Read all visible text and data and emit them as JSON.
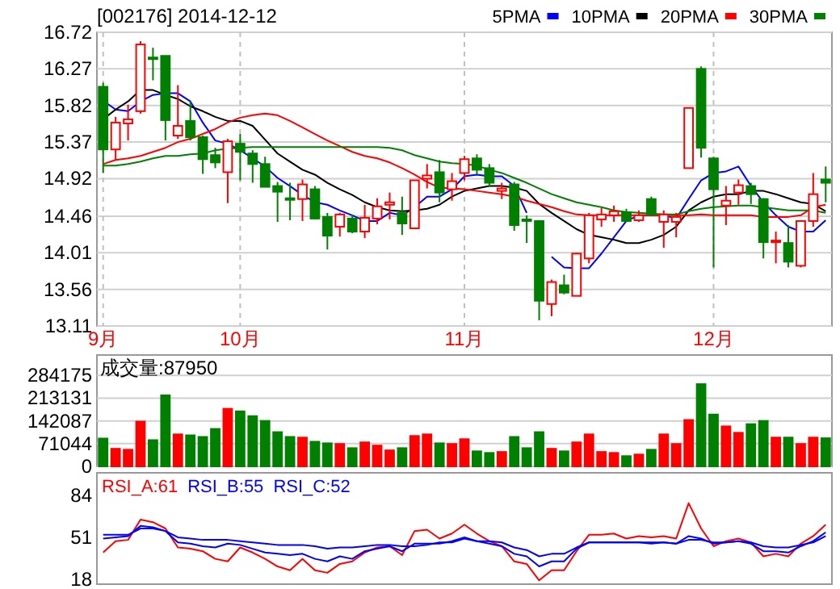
{
  "chart_data": [
    {
      "type": "candlestick",
      "title": "[002176] 2014-12-12",
      "categories": [
        "9月",
        null,
        null,
        null,
        null,
        null,
        null,
        null,
        null,
        null,
        null,
        "10月",
        null,
        null,
        null,
        null,
        null,
        null,
        null,
        null,
        null,
        null,
        null,
        null,
        null,
        null,
        null,
        null,
        null,
        "11月",
        null,
        null,
        null,
        null,
        null,
        null,
        null,
        null,
        null,
        null,
        null,
        null,
        null,
        null,
        null,
        null,
        null,
        null,
        null,
        "12月",
        null,
        null,
        null,
        null,
        null,
        null,
        null,
        null,
        null
      ],
      "ohlc": [
        [
          16.05,
          16.1,
          14.99,
          15.28
        ],
        [
          15.28,
          15.68,
          15.15,
          15.61
        ],
        [
          15.6,
          15.83,
          15.39,
          15.65
        ],
        [
          15.75,
          16.61,
          15.72,
          16.57
        ],
        [
          16.41,
          16.53,
          16.13,
          16.39
        ],
        [
          16.43,
          16.43,
          15.39,
          15.64
        ],
        [
          15.45,
          16.07,
          15.41,
          15.57
        ],
        [
          15.63,
          15.87,
          15.39,
          15.43
        ],
        [
          15.43,
          15.45,
          14.98,
          15.16
        ],
        [
          15.21,
          15.3,
          15.05,
          15.12
        ],
        [
          15.0,
          15.41,
          14.62,
          15.38
        ],
        [
          15.35,
          15.47,
          14.9,
          15.25
        ],
        [
          15.23,
          15.27,
          14.87,
          15.1
        ],
        [
          15.1,
          15.19,
          14.82,
          14.82
        ],
        [
          14.83,
          14.88,
          14.39,
          14.76
        ],
        [
          14.68,
          14.87,
          14.41,
          14.67
        ],
        [
          14.67,
          14.91,
          14.4,
          14.85
        ],
        [
          14.79,
          14.83,
          14.42,
          14.43
        ],
        [
          14.45,
          14.5,
          14.05,
          14.22
        ],
        [
          14.33,
          14.5,
          14.21,
          14.48
        ],
        [
          14.43,
          14.48,
          14.25,
          14.27
        ],
        [
          14.27,
          14.6,
          14.19,
          14.44
        ],
        [
          14.43,
          14.68,
          14.36,
          14.58
        ],
        [
          14.6,
          14.75,
          14.42,
          14.63
        ],
        [
          14.5,
          14.7,
          14.23,
          14.37
        ],
        [
          14.31,
          14.9,
          14.31,
          14.9
        ],
        [
          14.92,
          15.1,
          14.8,
          14.96
        ],
        [
          15.0,
          15.15,
          14.63,
          14.75
        ],
        [
          14.79,
          14.99,
          14.65,
          14.89
        ],
        [
          14.99,
          15.2,
          14.9,
          15.16
        ],
        [
          15.17,
          15.22,
          14.97,
          15.03
        ],
        [
          15.05,
          15.1,
          14.82,
          14.87
        ],
        [
          14.77,
          14.87,
          14.67,
          14.8
        ],
        [
          14.85,
          14.88,
          14.28,
          14.35
        ],
        [
          14.42,
          14.47,
          14.13,
          14.41
        ],
        [
          14.4,
          14.4,
          13.18,
          13.42
        ],
        [
          13.38,
          13.68,
          13.23,
          13.65
        ],
        [
          13.61,
          13.74,
          13.5,
          13.52
        ],
        [
          13.48,
          14.01,
          13.48,
          14.0
        ],
        [
          13.94,
          14.5,
          13.88,
          14.47
        ],
        [
          14.42,
          14.56,
          14.33,
          14.48
        ],
        [
          14.47,
          14.59,
          14.39,
          14.52
        ],
        [
          14.5,
          14.55,
          14.39,
          14.4
        ],
        [
          14.41,
          14.53,
          14.39,
          14.47
        ],
        [
          14.67,
          14.7,
          14.47,
          14.48
        ],
        [
          14.39,
          14.53,
          14.07,
          14.48
        ],
        [
          14.39,
          14.5,
          14.2,
          14.45
        ],
        [
          15.05,
          15.79,
          15.05,
          15.79
        ],
        [
          16.27,
          16.3,
          15.18,
          15.3
        ],
        [
          15.17,
          15.19,
          13.83,
          14.79
        ],
        [
          14.59,
          14.83,
          14.35,
          14.65
        ],
        [
          14.75,
          14.91,
          14.6,
          14.84
        ],
        [
          14.83,
          14.87,
          14.61,
          14.73
        ],
        [
          14.67,
          14.68,
          13.94,
          14.14
        ],
        [
          14.14,
          14.27,
          13.88,
          14.16
        ],
        [
          14.13,
          14.35,
          13.83,
          13.9
        ],
        [
          13.85,
          14.4,
          13.83,
          14.4
        ],
        [
          14.4,
          14.99,
          14.33,
          14.73
        ],
        [
          14.91,
          15.07,
          14.63,
          14.87
        ]
      ],
      "series": [
        {
          "name": "5PMA",
          "type": "line",
          "color": "#0000ff",
          "values": [
            15.88,
            15.77,
            15.75,
            15.87,
            15.95,
            15.97,
            15.97,
            15.87,
            15.61,
            15.39,
            15.35,
            15.27,
            15.17,
            15.07,
            14.93,
            14.83,
            14.72,
            14.63,
            14.6,
            14.53,
            14.47,
            14.4,
            14.4,
            14.5,
            14.47,
            14.57,
            14.7,
            14.7,
            14.79,
            14.95,
            14.97,
            14.95,
            14.95,
            14.83,
            14.5,
            null,
            13.96,
            13.83,
            13.82,
            13.82,
            14.0,
            14.2,
            14.4,
            14.47,
            14.47,
            14.47,
            14.43,
            14.67,
            14.9,
            14.99,
            15.01,
            15.07,
            14.83,
            14.63,
            14.47,
            14.33,
            14.27,
            14.27,
            14.41
          ]
        },
        {
          "name": "10PMA",
          "type": "line",
          "color": "#000000",
          "values": [
            15.65,
            15.77,
            15.87,
            16.01,
            16.01,
            15.95,
            15.9,
            15.81,
            15.75,
            15.68,
            15.63,
            15.63,
            15.57,
            15.4,
            15.23,
            15.13,
            15.03,
            14.97,
            14.87,
            14.79,
            14.72,
            14.63,
            14.57,
            14.53,
            14.52,
            14.53,
            14.55,
            14.6,
            14.7,
            14.77,
            14.8,
            14.83,
            14.83,
            14.81,
            14.77,
            14.61,
            14.5,
            14.4,
            14.3,
            14.23,
            14.2,
            14.17,
            14.13,
            14.13,
            14.17,
            14.23,
            14.33,
            14.53,
            14.63,
            14.7,
            14.73,
            14.73,
            14.77,
            14.77,
            14.73,
            14.68,
            14.63,
            14.61,
            14.52
          ]
        },
        {
          "name": "20PMA",
          "type": "line",
          "color": "#ff0000",
          "values": [
            15.1,
            15.15,
            15.17,
            15.2,
            15.25,
            15.3,
            15.37,
            15.41,
            15.47,
            15.53,
            15.61,
            15.67,
            15.7,
            15.72,
            15.7,
            15.63,
            15.55,
            15.47,
            15.39,
            15.32,
            15.25,
            15.2,
            15.17,
            15.12,
            15.05,
            14.97,
            14.88,
            14.81,
            14.8,
            14.79,
            14.77,
            14.75,
            14.73,
            14.7,
            14.65,
            14.61,
            14.57,
            14.52,
            14.48,
            14.47,
            14.47,
            14.47,
            14.47,
            14.47,
            14.47,
            14.47,
            14.47,
            14.47,
            14.48,
            14.47,
            14.47,
            14.47,
            14.47,
            14.45,
            14.45,
            14.45,
            14.47,
            14.57,
            14.6
          ]
        },
        {
          "name": "30PMA",
          "type": "line",
          "color": "#008000",
          "values": [
            15.08,
            15.08,
            15.1,
            15.13,
            15.17,
            15.2,
            15.2,
            15.22,
            15.23,
            15.27,
            15.29,
            15.3,
            15.31,
            15.31,
            15.31,
            15.31,
            15.31,
            15.31,
            15.31,
            15.31,
            15.31,
            15.31,
            15.31,
            15.3,
            15.27,
            15.21,
            15.17,
            15.13,
            15.11,
            15.1,
            15.08,
            15.03,
            14.99,
            14.93,
            14.87,
            14.8,
            14.73,
            14.68,
            14.63,
            14.6,
            14.57,
            14.53,
            14.51,
            14.5,
            14.49,
            14.48,
            14.48,
            14.52,
            14.55,
            14.57,
            14.58,
            14.59,
            14.59,
            14.57,
            14.55,
            14.53,
            14.53,
            14.53,
            14.5
          ]
        }
      ],
      "ylim": [
        13.11,
        16.72
      ],
      "yticks": [
        13.11,
        13.56,
        14.01,
        14.46,
        14.92,
        15.37,
        15.82,
        16.27,
        16.72
      ],
      "grid": true,
      "legend": "top right"
    },
    {
      "type": "bar",
      "title": "成交量:87950",
      "categories": [
        null,
        null,
        null,
        null,
        null,
        null,
        null,
        null,
        null,
        null,
        null,
        null,
        null,
        null,
        null,
        null,
        null,
        null,
        null,
        null,
        null,
        null,
        null,
        null,
        null,
        null,
        null,
        null,
        null,
        null,
        null,
        null,
        null,
        null,
        null,
        null,
        null,
        null,
        null,
        null,
        null,
        null,
        null,
        null,
        null,
        null,
        null,
        null,
        null,
        null,
        null,
        null,
        null,
        null,
        null,
        null,
        null,
        null,
        null
      ],
      "values": [
        87000,
        55000,
        52000,
        140000,
        82000,
        222000,
        100000,
        97000,
        92000,
        117000,
        180000,
        172000,
        157000,
        142000,
        107000,
        92000,
        90000,
        77000,
        72000,
        70000,
        57000,
        75000,
        65000,
        50000,
        57000,
        95000,
        100000,
        72000,
        70000,
        85000,
        47000,
        42000,
        45000,
        92000,
        57000,
        107000,
        55000,
        47000,
        75000,
        100000,
        45000,
        42000,
        32000,
        37000,
        52000,
        100000,
        70000,
        145000,
        257000,
        162000,
        125000,
        105000,
        132000,
        142000,
        90000,
        90000,
        70000,
        90000,
        87950
      ],
      "colors": [
        "#008000",
        "#ff0000",
        "#ff0000",
        "#ff0000",
        "#008000",
        "#008000",
        "#ff0000",
        "#008000",
        "#008000",
        "#008000",
        "#ff0000",
        "#008000",
        "#008000",
        "#008000",
        "#008000",
        "#008000",
        "#ff0000",
        "#008000",
        "#008000",
        "#ff0000",
        "#008000",
        "#ff0000",
        "#ff0000",
        "#ff0000",
        "#008000",
        "#ff0000",
        "#ff0000",
        "#008000",
        "#ff0000",
        "#ff0000",
        "#008000",
        "#008000",
        "#ff0000",
        "#008000",
        "#008000",
        "#008000",
        "#ff0000",
        "#008000",
        "#ff0000",
        "#ff0000",
        "#ff0000",
        "#ff0000",
        "#008000",
        "#ff0000",
        "#008000",
        "#ff0000",
        "#ff0000",
        "#ff0000",
        "#008000",
        "#008000",
        "#ff0000",
        "#ff0000",
        "#008000",
        "#008000",
        "#ff0000",
        "#008000",
        "#ff0000",
        "#ff0000",
        "#008000"
      ],
      "ylim": [
        0,
        348000
      ],
      "yticks": [
        0,
        71044,
        142087,
        213131,
        284175
      ],
      "grid": "y",
      "tick_labels": "y"
    },
    {
      "type": "line",
      "categories": [
        null,
        null,
        null,
        null,
        null,
        null,
        null,
        null,
        null,
        null,
        null,
        null,
        null,
        null,
        null,
        null,
        null,
        null,
        null,
        null,
        null,
        null,
        null,
        null,
        null,
        null,
        null,
        null,
        null,
        null,
        null,
        null,
        null,
        null,
        null,
        null,
        null,
        null,
        null,
        null,
        null,
        null,
        null,
        null,
        null,
        null,
        null,
        null,
        null,
        null,
        null,
        null,
        null,
        null,
        null,
        null,
        null,
        null,
        null
      ],
      "series": [
        {
          "name": "RSI_A:61",
          "color": "#ff0000",
          "values": [
            39,
            48,
            49,
            65,
            63,
            58,
            43,
            42,
            40,
            34,
            32,
            43,
            39,
            34,
            28,
            25,
            34,
            25,
            23,
            30,
            32,
            39,
            43,
            44,
            37,
            56,
            57,
            50,
            54,
            61,
            54,
            48,
            44,
            32,
            30,
            17,
            25,
            25,
            40,
            53,
            53,
            54,
            50,
            52,
            51,
            52,
            50,
            78,
            58,
            44,
            48,
            50,
            47,
            36,
            38,
            36,
            46,
            52,
            61
          ]
        },
        {
          "name": "RSI_B:55",
          "color": "#0000ff",
          "values": [
            50,
            51,
            52,
            60,
            59,
            56,
            47,
            46,
            44,
            43,
            46,
            45,
            42,
            39,
            38,
            37,
            38,
            34,
            32,
            36,
            34,
            40,
            42,
            44,
            40,
            46,
            46,
            46,
            48,
            51,
            48,
            46,
            44,
            38,
            36,
            28,
            32,
            32,
            42,
            47,
            47,
            47,
            47,
            47,
            47,
            47,
            46,
            52,
            50,
            46,
            47,
            48,
            46,
            40,
            40,
            39,
            44,
            48,
            55
          ]
        },
        {
          "name": "RSI_C:52",
          "color": "#0000ff",
          "values": [
            53,
            53,
            53,
            58,
            58,
            56,
            51,
            50,
            49,
            49,
            49,
            48,
            47,
            46,
            45,
            45,
            45,
            44,
            42,
            43,
            43,
            44,
            45,
            45,
            44,
            44,
            45,
            47,
            47,
            50,
            48,
            48,
            47,
            43,
            41,
            36,
            38,
            38,
            43,
            47,
            47,
            47,
            47,
            47,
            46,
            47,
            46,
            49,
            49,
            47,
            47,
            48,
            47,
            44,
            43,
            43,
            45,
            47,
            52
          ]
        }
      ],
      "ylim": [
        14,
        102
      ],
      "yticks": [
        18,
        51,
        84
      ],
      "tick_labels": "y",
      "legend": "top left"
    }
  ]
}
